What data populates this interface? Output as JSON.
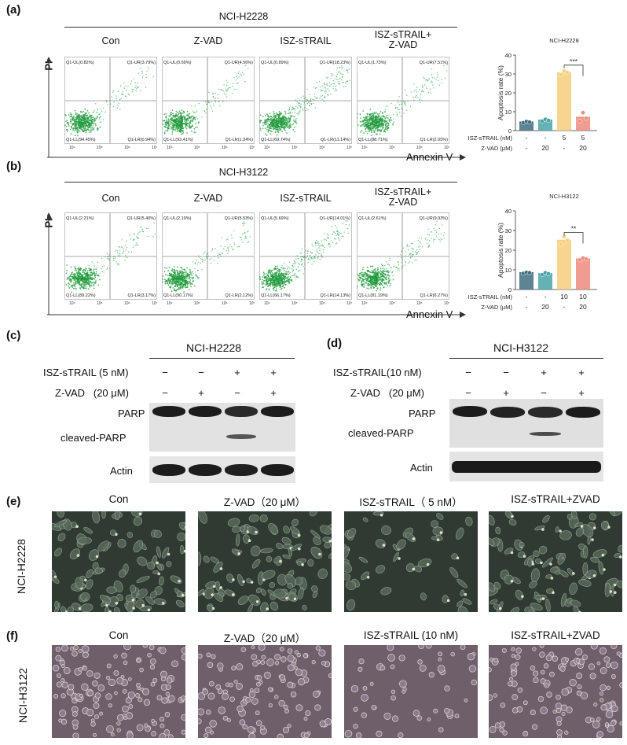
{
  "panels": {
    "a": {
      "label": "(a)",
      "cell_line": "NCI-H2228",
      "conditions": [
        "Con",
        "Z-VAD",
        "ISZ-sTRAIL",
        "ISZ-sTRAIL+\nZ-VAD"
      ],
      "quadrants": [
        {
          "ul": "Q1-UL(0.82%)",
          "ur": "Q1-UR(3.79%)",
          "ll": "Q1-LL(94.45%)",
          "lr": "Q1-LR(0.94%)",
          "spread": 0.35
        },
        {
          "ul": "Q1-UL(0.69%)",
          "ur": "Q1-UR(4.56%)",
          "ll": "Q1-LL(93.41%)",
          "lr": "Q1-LR(1.34%)",
          "spread": 0.4
        },
        {
          "ul": "Q1-UL(0.89%)",
          "ur": "Q1-UR(18.23%)",
          "ll": "Q1-LL(69.74%)",
          "lr": "Q1-LR(11.14%)",
          "spread": 1.0
        },
        {
          "ul": "Q1-UL(1.73%)",
          "ur": "Q1-UR(7.51%)",
          "ll": "Q1-LL(88.71%)",
          "lr": "Q1-LR(2.05%)",
          "spread": 0.55
        }
      ],
      "y_axis": "PI",
      "x_axis": "Annexin V",
      "x_ticks": [
        "10⁴",
        "10⁵",
        "10⁶",
        "10⁷"
      ],
      "y_ticks": [
        "10⁴",
        "10⁵",
        "10⁶",
        "10⁷"
      ],
      "chart_title": "NCI-H2228",
      "ylabel": "Apoptosis rate (%)",
      "significance": "***"
    },
    "b": {
      "label": "(b)",
      "cell_line": "NCI-H3122",
      "conditions": [
        "Con",
        "Z-VAD",
        "ISZ-sTRAIL",
        "ISZ-sTRAIL+\nZ-VAD"
      ],
      "quadrants": [
        {
          "ul": "Q1-UL(2.21%)",
          "ur": "Q1-UR(5.40%)",
          "ll": "Q1-LL(89.22%)",
          "lr": "Q1-LR(3.17%)",
          "spread": 0.45
        },
        {
          "ul": "Q1-UL(2.19%)",
          "ur": "Q1-UR(5.53%)",
          "ll": "Q1-LL(90.17%)",
          "lr": "Q1-LR(2.12%)",
          "spread": 0.45
        },
        {
          "ul": "Q1-UL(5.69%)",
          "ur": "Q1-UR(14.01%)",
          "ll": "Q1-LL(66.17%)",
          "lr": "Q1-LR(14.13%)",
          "spread": 1.0
        },
        {
          "ul": "Q1-UL(2.61%)",
          "ur": "Q1-UR(9.93%)",
          "ll": "Q1-LL(81.19%)",
          "lr": "Q1-LR(6.27%)",
          "spread": 0.7
        }
      ],
      "y_axis": "PI",
      "x_axis": "Annexin V",
      "x_ticks": [
        "10⁴",
        "10⁵",
        "10⁶",
        "10⁷"
      ],
      "y_ticks": [
        "10⁴",
        "10⁵",
        "10⁶",
        "10⁷"
      ],
      "chart_title": "NCI-H3122",
      "ylabel": "Apoptosis rate (%)",
      "significance": "**"
    },
    "c": {
      "label": "(c)",
      "cell_line": "NCI-H2228",
      "treat1": "ISZ-sTRAIL (5 nM)",
      "treat2": "Z-VAD   (20 μM)",
      "treat1_signs": [
        "−",
        "−",
        "+",
        "+"
      ],
      "treat2_signs": [
        "−",
        "+",
        "−",
        "+"
      ],
      "blot1_label": "PARP",
      "blot1b_label": "cleaved-PARP",
      "blot2_label": "Actin"
    },
    "d": {
      "label": "(d)",
      "cell_line": "NCI-H3122",
      "treat1": "ISZ-sTRAIL(10 nM)",
      "treat2": "Z-VAD   (20 μM)",
      "treat1_signs": [
        "−",
        "−",
        "+",
        "+"
      ],
      "treat2_signs": [
        "−",
        "+",
        "−",
        "+"
      ],
      "blot1_label": "PARP",
      "blot1b_label": "cleaved-PARP",
      "blot2_label": "Actin"
    },
    "e": {
      "label": "(e)",
      "row_label": "NCI-H2228",
      "titles": [
        "Con",
        "Z-VAD（20 μM）",
        "ISZ-sTRAIL（ 5 nM）",
        "ISZ-sTRAIL+ZVAD"
      ],
      "density": [
        0.9,
        0.85,
        0.35,
        0.8
      ]
    },
    "f": {
      "label": "(f)",
      "row_label": "NCI-H3122",
      "titles": [
        "Con",
        "Z-VAD（20 μM）",
        "ISZ-sTRAIL (10 nM)",
        "ISZ-sTRAIL+ZVAD"
      ],
      "density": [
        0.9,
        0.75,
        0.3,
        0.8
      ]
    }
  },
  "chart_data": [
    {
      "type": "bar",
      "title": "NCI-H2228",
      "ylabel": "Apoptosis rate (%)",
      "ylim": [
        0,
        40
      ],
      "yticks": [
        0,
        10,
        20,
        30,
        40
      ],
      "row_labels": [
        "ISZ-sTRAIL (nM)",
        "Z-VAD (μM)"
      ],
      "row1": [
        "-",
        "-",
        "5",
        "5"
      ],
      "row2": [
        "-",
        "20",
        "-",
        "20"
      ],
      "values": [
        4.5,
        5.5,
        30.5,
        7.0
      ],
      "points": [
        [
          4.2,
          4.8,
          4.5
        ],
        [
          5.0,
          6.0,
          5.4
        ],
        [
          29.5,
          31.5,
          30.8
        ],
        [
          5.0,
          9.5,
          6.5
        ]
      ],
      "colors": [
        "#3f6f80",
        "#4aa3a6",
        "#f5cf7a",
        "#ef8b7d"
      ],
      "significance": "***"
    },
    {
      "type": "bar",
      "title": "NCI-H3122",
      "ylabel": "Apoptosis rate (%)",
      "ylim": [
        0,
        40
      ],
      "yticks": [
        0,
        10,
        20,
        30,
        40
      ],
      "row_labels": [
        "ISZ-sTRAIL (nM)",
        "Z-VAD (μM)"
      ],
      "row1": [
        "-",
        "-",
        "10",
        "10"
      ],
      "row2": [
        "-",
        "20",
        "-",
        "20"
      ],
      "values": [
        8.5,
        8.0,
        25.0,
        15.5
      ],
      "points": [
        [
          8.2,
          8.7,
          8.5
        ],
        [
          7.5,
          8.5,
          8.0
        ],
        [
          23.0,
          27.0,
          25.0
        ],
        [
          15.0,
          16.0,
          15.5
        ]
      ],
      "colors": [
        "#3f6f80",
        "#4aa3a6",
        "#f5cf7a",
        "#ef8b7d"
      ],
      "significance": "**"
    }
  ]
}
